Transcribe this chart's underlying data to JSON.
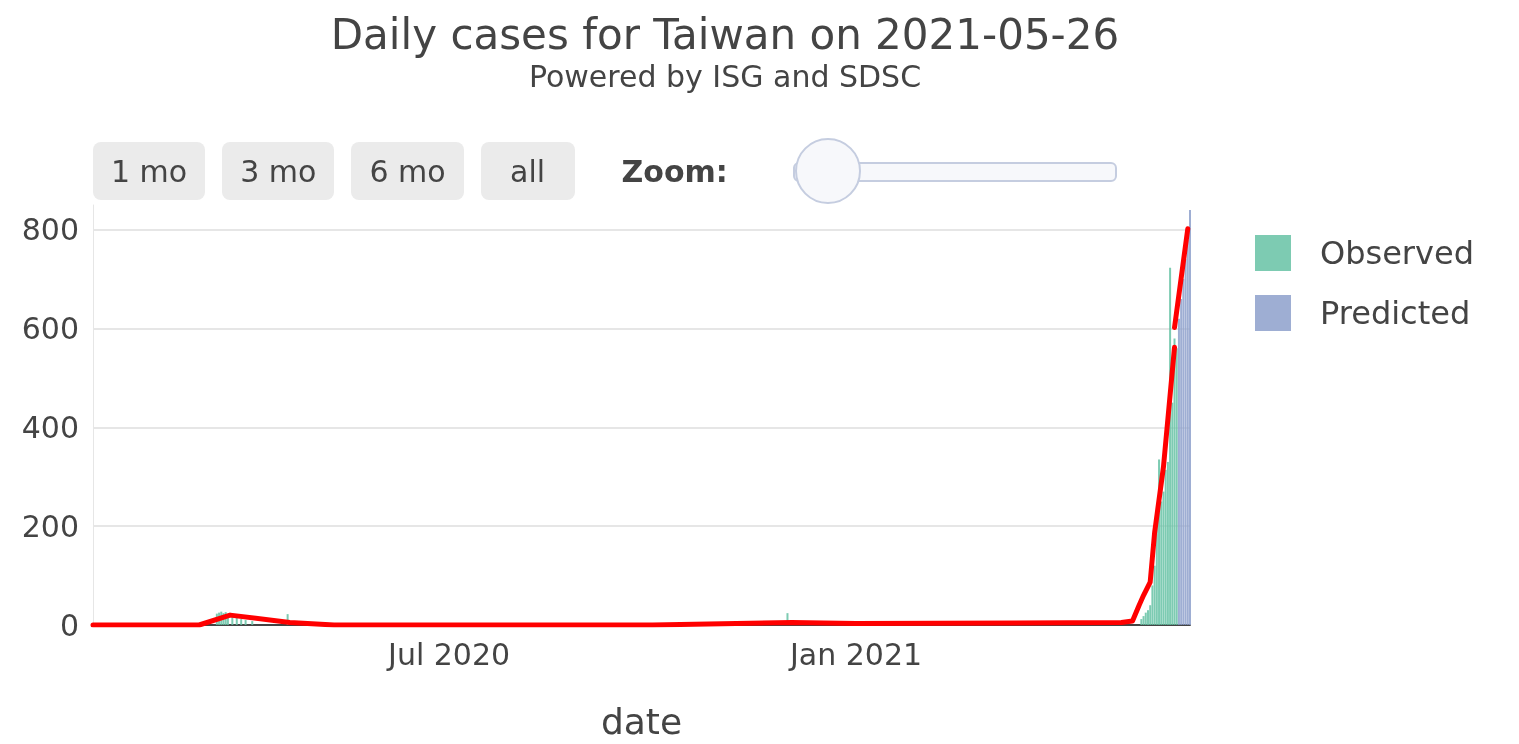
{
  "chart_data": {
    "type": "bar",
    "title": "Daily cases for Taiwan on 2021-05-26",
    "subtitle": "Powered by ISG and SDSC",
    "xlabel": "date",
    "annotations": [
      "1 mo",
      "3 mo",
      "6 mo",
      "all",
      "Zoom:"
    ],
    "xlim": [
      "2020-01-22",
      "2021-06-01"
    ],
    "xticks": [
      {
        "value": "2020-07-01",
        "label": "Jul 2020"
      },
      {
        "value": "2021-01-01",
        "label": "Jan 2021"
      }
    ],
    "ylim": [
      0,
      850
    ],
    "yticks": [
      0,
      200,
      400,
      600,
      800
    ],
    "grid": "y",
    "legend": "top right",
    "marker": "none",
    "line_style": "solid",
    "series": [
      {
        "name": "Observed",
        "color": "#66c2a5",
        "x": [
          "2020-03-18",
          "2020-03-19",
          "2020-03-20",
          "2020-03-21",
          "2020-03-22",
          "2020-03-23",
          "2020-03-25",
          "2020-03-27",
          "2020-03-29",
          "2020-03-31",
          "2020-04-03",
          "2020-04-19",
          "2020-12-01",
          "2021-05-10",
          "2021-05-11",
          "2021-05-12",
          "2021-05-13",
          "2021-05-14",
          "2021-05-15",
          "2021-05-16",
          "2021-05-17",
          "2021-05-18",
          "2021-05-19",
          "2021-05-20",
          "2021-05-21",
          "2021-05-22",
          "2021-05-23",
          "2021-05-24",
          "2021-05-25",
          "2021-05-26"
        ],
        "values": [
          23,
          25,
          27,
          24,
          26,
          20,
          18,
          15,
          12,
          10,
          8,
          22,
          24,
          12,
          18,
          25,
          30,
          40,
          80,
          120,
          200,
          335,
          250,
          270,
          314,
          330,
          723,
          450,
          580,
          560
        ]
      },
      {
        "name": "Predicted",
        "color": "#8da0cb",
        "x": [
          "2021-05-27",
          "2021-05-28",
          "2021-05-29",
          "2021-05-30",
          "2021-05-31",
          "2021-06-01"
        ],
        "values": [
          620,
          660,
          700,
          740,
          780,
          840
        ]
      },
      {
        "type": "line",
        "color": "#ff0000",
        "x": [
          "2020-01-22",
          "2020-03-10",
          "2020-03-24",
          "2020-04-20",
          "2020-05-10",
          "2020-10-01",
          "2020-12-03",
          "2021-01-01",
          "2021-05-01",
          "2021-05-06",
          "2021-05-09",
          "2021-05-11",
          "2021-05-14",
          "2021-05-16",
          "2021-05-20",
          "2021-05-25"
        ],
        "values": [
          0,
          0,
          20,
          5,
          0,
          0,
          5,
          3,
          5,
          8,
          40,
          60,
          87,
          187,
          320,
          562
        ]
      },
      {
        "type": "line",
        "color": "#ff0000",
        "x": [
          "2021-05-25",
          "2021-05-31"
        ],
        "values": [
          602,
          802
        ]
      }
    ]
  }
}
